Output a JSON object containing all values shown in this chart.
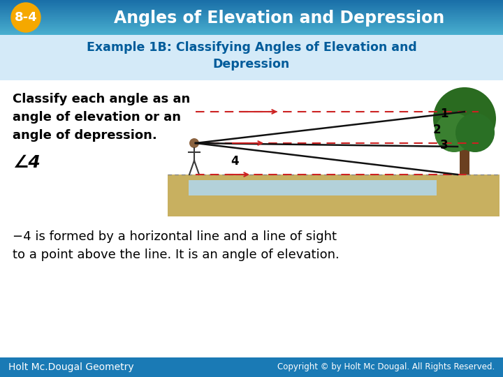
{
  "badge_text": "8-4",
  "badge_bg": "#F5A800",
  "header_bg": "#1a6fa8",
  "header_gradient_color": "#4ab0d0",
  "body_bg": "#ddeef8",
  "subtitle_bg": "#cce4f5",
  "subtitle_line1": "Example 1B: Classifying Angles of Elevation and",
  "subtitle_line2": "Depression",
  "subtitle_color": "#005b9a",
  "body_text_line1": "Classify each angle as an",
  "body_text_line2": "angle of elevation or an",
  "body_text_line3": "angle of depression.",
  "angle_sym": "∠4",
  "ans_line1": "−4 is formed by a horizontal line and a line of sight",
  "ans_line2": "to a point above the line. It is an angle of elevation.",
  "footer_left": "Holt Mc.Dougal Geometry",
  "footer_right": "Copyright © by Holt Mc Dougal. All Rights Reserved.",
  "footer_bg": "#1a7ab5",
  "footer_text_color": "#ffffff",
  "title_text_color": "#ffffff",
  "diagram_sky": "#e8f4f8",
  "diagram_ground_top": "#c8b880",
  "diagram_ground_bottom": "#8B7340",
  "diagram_water": "#a0c8e0",
  "line_color": "#111111",
  "dash_color": "#cc2222",
  "label_color": "#111111"
}
